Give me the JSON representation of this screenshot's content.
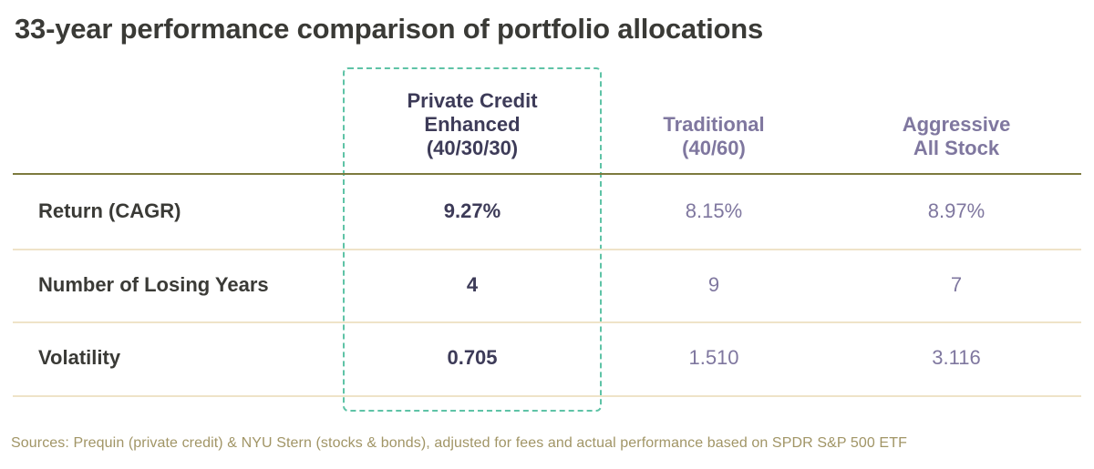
{
  "title": "33-year performance comparison of portfolio allocations",
  "source_note": "Sources: Prequin (private credit) & NYU Stern (stocks & bonds), adjusted for fees and actual performance based on SPDR S&P 500 ETF",
  "colors": {
    "title": "#3a3a36",
    "highlight_border": "#5ec3a6",
    "primary_text": "#3d3b58",
    "secondary_text": "#7f779f",
    "header_rule": "#7d7a3e",
    "row_rule": "#efe3c8",
    "source_text": "#a19566"
  },
  "chart_data": {
    "type": "table",
    "title": "33-year performance comparison of portfolio allocations",
    "columns": [
      {
        "label": "Private Credit\nEnhanced\n(40/30/30)",
        "highlighted": true
      },
      {
        "label": "Traditional\n(40/60)",
        "highlighted": false
      },
      {
        "label": "Aggressive\nAll Stock",
        "highlighted": false
      }
    ],
    "rows": [
      {
        "label": "Return (CAGR)",
        "values": [
          "9.27%",
          "8.15%",
          "8.97%"
        ]
      },
      {
        "label": "Number of Losing Years",
        "values": [
          "4",
          "9",
          "7"
        ]
      },
      {
        "label": "Volatility",
        "values": [
          "0.705",
          "1.510",
          "3.116"
        ]
      }
    ]
  }
}
